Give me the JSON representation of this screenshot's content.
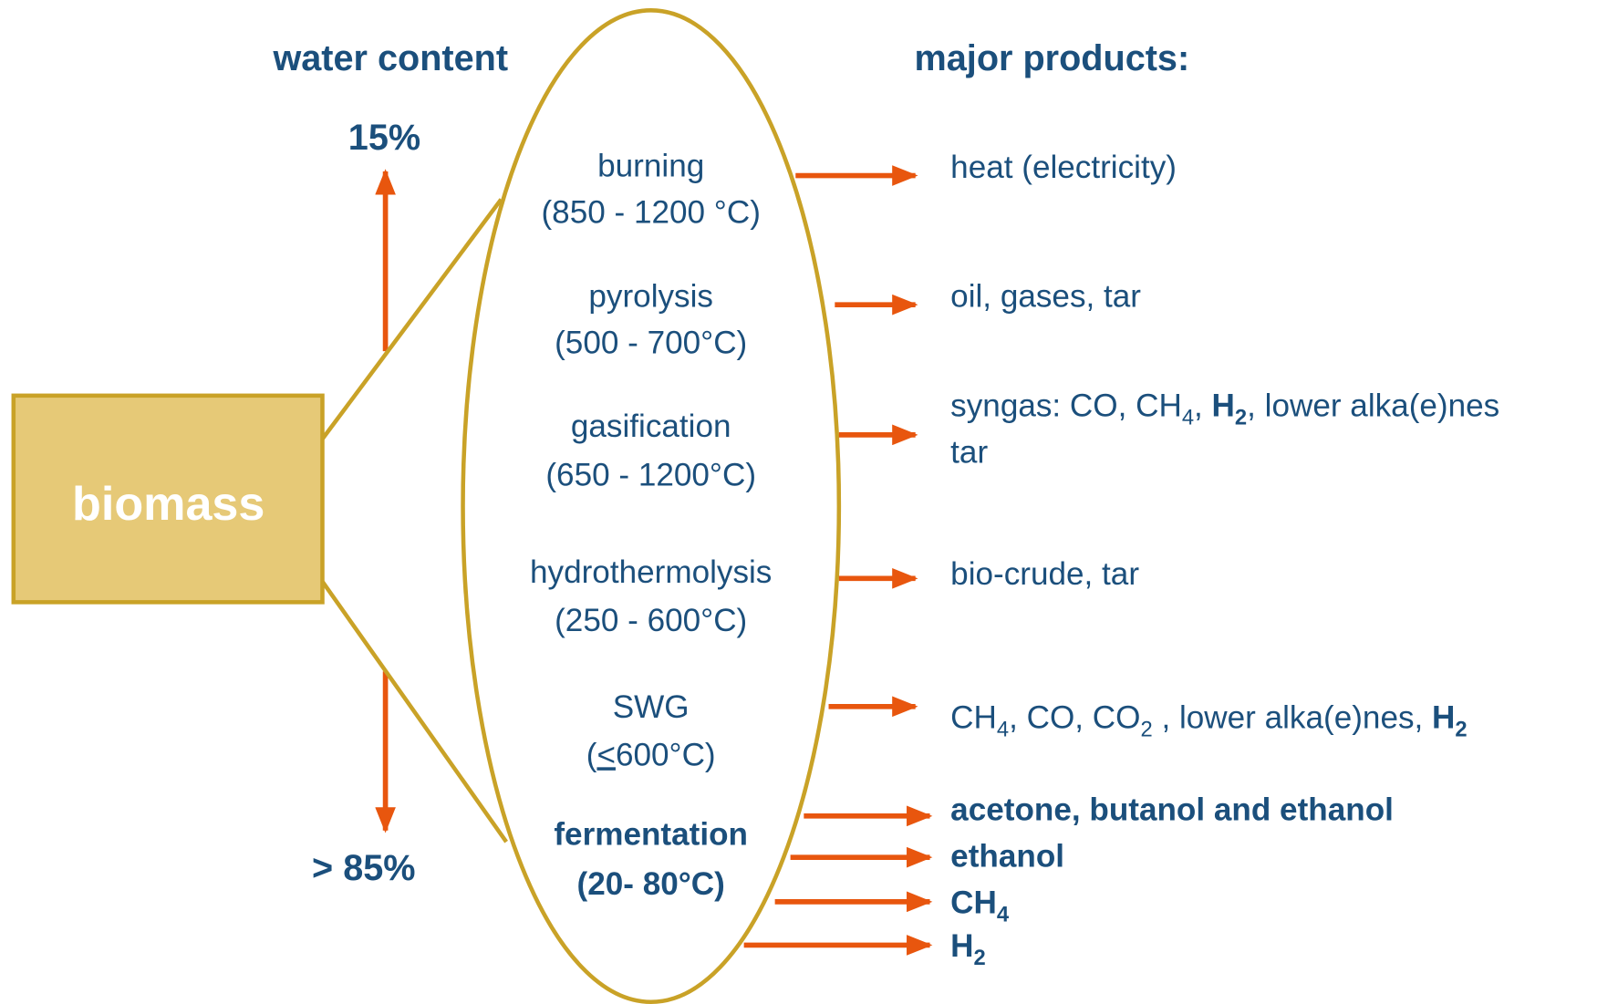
{
  "header": {
    "left": "water content",
    "right": "major products:"
  },
  "water": {
    "top": "15%",
    "bottom": "> 85%"
  },
  "biomass": "biomass",
  "processes": [
    {
      "name": [
        {
          "text": "burning"
        }
      ],
      "range": [
        {
          "text": "(850 - 1200 °C)"
        }
      ]
    },
    {
      "name": [
        {
          "text": "pyrolysis"
        }
      ],
      "range": [
        {
          "text": "(500 - 700°C)"
        }
      ]
    },
    {
      "name": [
        {
          "text": "gasification"
        }
      ],
      "range": [
        {
          "text": "(650 - 1200°C)"
        }
      ]
    },
    {
      "name": [
        {
          "text": "hydrothermolysis"
        }
      ],
      "range": [
        {
          "text": "(250 - 600°C)"
        }
      ]
    },
    {
      "name": [
        {
          "text": "SWG"
        }
      ],
      "range": [
        {
          "text": "("
        },
        {
          "underline": "<"
        },
        {
          "text": "600°C)"
        }
      ]
    },
    {
      "name": [
        {
          "bold": "fermentation"
        }
      ],
      "range": [
        {
          "bold": "(20- 80°C)"
        }
      ]
    }
  ],
  "products": [
    {
      "lines": [
        [
          {
            "text": "heat (electricity)"
          }
        ]
      ]
    },
    {
      "lines": [
        [
          {
            "text": "oil, gases, tar"
          }
        ]
      ]
    },
    {
      "lines": [
        [
          {
            "text": "syngas: CO, CH"
          },
          {
            "sub": "4"
          },
          {
            "text": ", "
          },
          {
            "bold": "H"
          },
          {
            "boldsub": "2"
          },
          {
            "text": ", lower alka(e)nes"
          }
        ],
        [
          {
            "text": "tar"
          }
        ]
      ]
    },
    {
      "lines": [
        [
          {
            "text": "bio-crude, tar"
          }
        ]
      ]
    },
    {
      "lines": [
        [
          {
            "text": "CH"
          },
          {
            "sub": "4"
          },
          {
            "text": ", CO, CO"
          },
          {
            "sub": "2"
          },
          {
            "text": " , lower alka(e)nes, "
          },
          {
            "bold": "H"
          },
          {
            "boldsub": "2"
          }
        ]
      ]
    },
    {
      "lines": [
        [
          {
            "bold": "acetone, butanol and ethanol"
          }
        ]
      ]
    },
    {
      "lines": [
        [
          {
            "bold": "ethanol"
          }
        ]
      ]
    },
    {
      "lines": [
        [
          {
            "bold": "CH"
          },
          {
            "boldsub": "4"
          }
        ]
      ]
    },
    {
      "lines": [
        [
          {
            "bold": "H"
          },
          {
            "boldsub": "2"
          }
        ]
      ]
    }
  ]
}
